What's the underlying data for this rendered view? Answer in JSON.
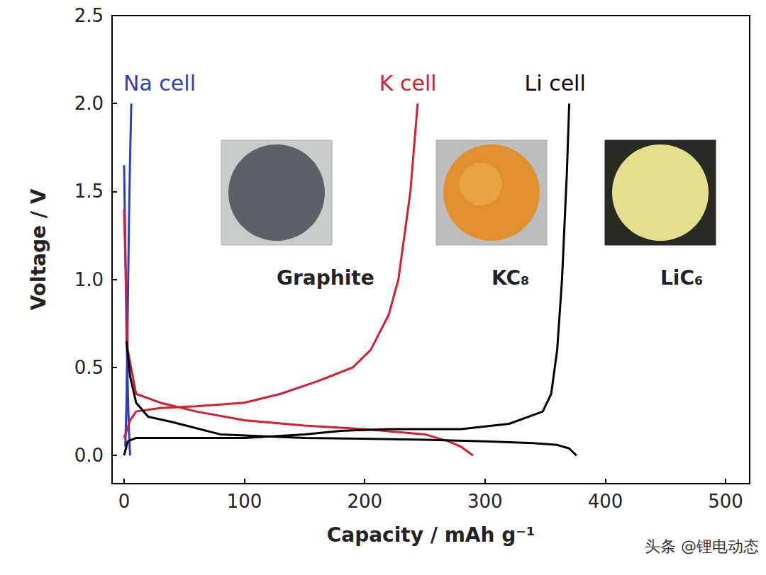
{
  "chart_data": {
    "type": "line",
    "xlabel": "Capacity / mAh g⁻¹",
    "ylabel": "Voltage / V",
    "xlim": [
      -10,
      520
    ],
    "xticks": [
      0,
      100,
      200,
      300,
      400,
      500
    ],
    "ylim": [
      -0.16,
      2.5
    ],
    "yticks": [
      {
        "value": 0,
        "label": "0.0"
      },
      {
        "value": 0.5,
        "label": "0.5"
      },
      {
        "value": 1,
        "label": "1.0"
      },
      {
        "value": 1.5,
        "label": "1.5"
      },
      {
        "value": 2,
        "label": "2.0"
      },
      {
        "value": 2.5,
        "label": "2.5"
      }
    ],
    "grid": false,
    "series": [
      {
        "name": "Na cell",
        "color": "#2b3fc4",
        "x": [
          0,
          1,
          2,
          3,
          4,
          5,
          null,
          1,
          2,
          3,
          4,
          5,
          6
        ],
        "values": [
          1.65,
          1.2,
          0.7,
          0.4,
          0.15,
          0.0,
          null,
          0.05,
          0.3,
          0.8,
          1.3,
          1.7,
          2.0
        ]
      },
      {
        "name": "K cell",
        "color": "#d61f2c",
        "x": [
          0,
          3,
          10,
          30,
          60,
          100,
          150,
          200,
          250,
          270,
          280,
          290,
          null,
          0,
          5,
          10,
          30,
          60,
          100,
          130,
          160,
          190,
          205,
          220,
          228,
          238,
          244
        ],
        "values": [
          1.4,
          0.6,
          0.35,
          0.3,
          0.25,
          0.2,
          0.17,
          0.15,
          0.12,
          0.08,
          0.05,
          0.0,
          null,
          0.1,
          0.2,
          0.25,
          0.27,
          0.28,
          0.3,
          0.35,
          0.42,
          0.5,
          0.6,
          0.8,
          1.0,
          1.5,
          2.0
        ]
      },
      {
        "name": "Li cell",
        "color": "#000000",
        "x": [
          2,
          5,
          10,
          20,
          40,
          80,
          150,
          250,
          300,
          340,
          360,
          370,
          376,
          null,
          0,
          3,
          10,
          50,
          100,
          150,
          180,
          220,
          280,
          320,
          340,
          348,
          355,
          360,
          364,
          368,
          370
        ],
        "values": [
          0.65,
          0.45,
          0.3,
          0.22,
          0.19,
          0.12,
          0.1,
          0.09,
          0.08,
          0.07,
          0.06,
          0.04,
          0.0,
          null,
          0.0,
          0.08,
          0.1,
          0.1,
          0.1,
          0.12,
          0.14,
          0.15,
          0.15,
          0.18,
          0.23,
          0.25,
          0.35,
          0.6,
          1.0,
          1.6,
          2.0
        ]
      }
    ],
    "insets": [
      {
        "label": "Graphite"
      },
      {
        "label": "KC₈"
      },
      {
        "label": "LiC₆"
      }
    ],
    "watermark": "头条 @锂电动态"
  }
}
